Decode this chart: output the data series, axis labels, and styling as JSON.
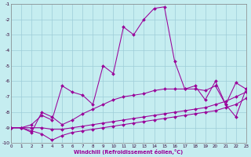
{
  "bg_color": "#c5edf0",
  "grid_color": "#9dcdd8",
  "line_color": "#990099",
  "xlim": [
    0,
    23
  ],
  "ylim": [
    -10,
    -1
  ],
  "xticks": [
    0,
    1,
    2,
    3,
    4,
    5,
    6,
    7,
    8,
    9,
    10,
    11,
    12,
    13,
    14,
    15,
    16,
    17,
    18,
    19,
    20,
    21,
    22,
    23
  ],
  "yticks": [
    -1,
    -2,
    -3,
    -4,
    -5,
    -6,
    -7,
    -8,
    -9,
    -10
  ],
  "xlabel": "Windchill (Refroidissement éolien,°C)",
  "series": [
    [
      -9.0,
      -9.0,
      -8.8,
      -8.2,
      -8.5,
      -6.3,
      -6.7,
      -6.9,
      -7.5,
      -5.0,
      -5.5,
      -2.5,
      -3.0,
      -2.0,
      -1.3,
      -1.2,
      -4.7,
      -6.5,
      -6.3,
      -7.2,
      -6.0,
      -7.5,
      -8.3,
      -6.5
    ],
    [
      -9.0,
      -9.0,
      -9.3,
      -8.0,
      -8.3,
      -8.8,
      -8.5,
      -8.1,
      -7.8,
      -7.5,
      -7.2,
      -7.0,
      -6.9,
      -6.8,
      -6.6,
      -6.5,
      -6.5,
      -6.5,
      -6.5,
      -6.6,
      -6.3,
      -7.5,
      -6.1,
      -6.5
    ],
    [
      -9.0,
      -9.0,
      -9.0,
      -9.0,
      -9.1,
      -9.1,
      -9.0,
      -8.9,
      -8.8,
      -8.7,
      -8.6,
      -8.5,
      -8.4,
      -8.3,
      -8.2,
      -8.1,
      -8.0,
      -7.9,
      -7.8,
      -7.7,
      -7.5,
      -7.3,
      -7.0,
      -6.7
    ],
    [
      -9.0,
      -9.0,
      -9.2,
      -9.4,
      -9.8,
      -9.5,
      -9.3,
      -9.2,
      -9.1,
      -9.0,
      -8.9,
      -8.8,
      -8.7,
      -8.6,
      -8.5,
      -8.4,
      -8.3,
      -8.2,
      -8.1,
      -8.0,
      -7.9,
      -7.7,
      -7.5,
      -7.1
    ]
  ]
}
